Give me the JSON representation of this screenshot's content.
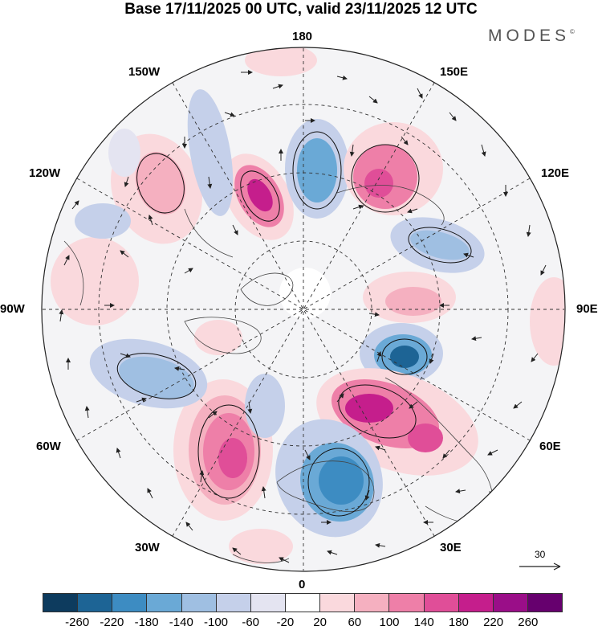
{
  "header": {
    "title": "Base 17/11/2025 00 UTC, valid 23/11/2025 12 UTC",
    "brand": "MODES"
  },
  "longitude_labels": {
    "top": "180",
    "top_left": "150W",
    "top_right": "150E",
    "upper_left": "120W",
    "upper_right": "120E",
    "left": "90W",
    "right": "90E",
    "lower_left": "60W",
    "lower_right": "60E",
    "bottom_left": "30W",
    "bottom_right": "30E",
    "bottom": "0"
  },
  "reference_vector": {
    "value": "30"
  },
  "colorbar": {
    "colors": [
      "#0d3b5e",
      "#1d6495",
      "#3d8cc2",
      "#6aa9d6",
      "#9fbfe2",
      "#c5d0ea",
      "#e4e4f1",
      "#ffffff",
      "#fad9dd",
      "#f5b0c0",
      "#ee7fa8",
      "#e04e98",
      "#c51e8c",
      "#9a0e88",
      "#66006e"
    ],
    "ticks": [
      "-260",
      "-220",
      "-180",
      "-140",
      "-100",
      "-60",
      "-20",
      "20",
      "60",
      "100",
      "140",
      "180",
      "220",
      "260"
    ]
  },
  "anomaly_centers": [
    {
      "name": "pink-150w",
      "level": "100"
    },
    {
      "name": "pink-165w",
      "level": "220"
    },
    {
      "name": "blue-170e",
      "level": "-140"
    },
    {
      "name": "pink-150e",
      "level": "180"
    },
    {
      "name": "blue-110e",
      "level": "-100"
    },
    {
      "name": "pink-90e",
      "level": "100"
    },
    {
      "name": "blue-70e",
      "level": "-220"
    },
    {
      "name": "pink-50e",
      "level": "220"
    },
    {
      "name": "blue-15e",
      "level": "-180"
    },
    {
      "name": "pink-40w",
      "level": "180"
    },
    {
      "name": "blue-75w",
      "level": "-140"
    },
    {
      "name": "pink-100w",
      "level": "60"
    }
  ]
}
